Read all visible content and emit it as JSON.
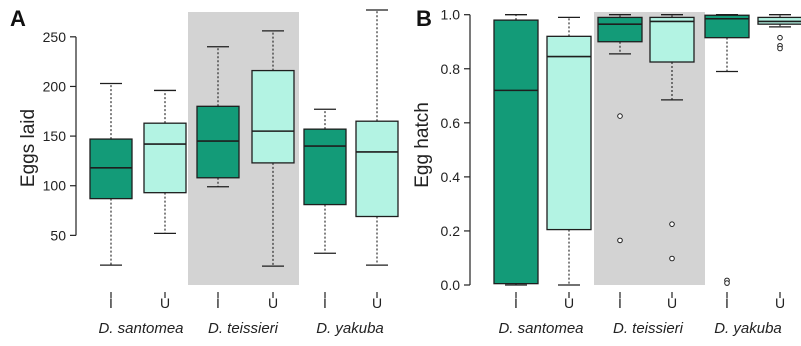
{
  "chart_data": [
    {
      "panel": "A",
      "type": "boxplot",
      "ylabel": "Eggs laid",
      "ylim": [
        0,
        275
      ],
      "yticks": [
        50,
        100,
        150,
        200,
        250
      ],
      "categories": [
        "I",
        "U",
        "I",
        "U",
        "I",
        "U"
      ],
      "groups": [
        {
          "species": "D. santomea",
          "shaded": false
        },
        {
          "species": "D. teissieri",
          "shaded": true
        },
        {
          "species": "D. yakuba",
          "shaded": false
        }
      ],
      "boxes": [
        {
          "category": "I",
          "whisker_low": 20,
          "q1": 87,
          "median": 118,
          "q3": 147,
          "whisker_high": 203,
          "outliers": []
        },
        {
          "category": "U",
          "whisker_low": 52,
          "q1": 93,
          "median": 142,
          "q3": 163,
          "whisker_high": 196,
          "outliers": []
        },
        {
          "category": "I",
          "whisker_low": 99,
          "q1": 108,
          "median": 145,
          "q3": 180,
          "whisker_high": 240,
          "outliers": []
        },
        {
          "category": "U",
          "whisker_low": 19,
          "q1": 123,
          "median": 155,
          "q3": 216,
          "whisker_high": 256,
          "outliers": []
        },
        {
          "category": "I",
          "whisker_low": 32,
          "q1": 81,
          "median": 140,
          "q3": 157,
          "whisker_high": 177,
          "outliers": []
        },
        {
          "category": "U",
          "whisker_low": 20,
          "q1": 69,
          "median": 134,
          "q3": 165,
          "whisker_high": 277,
          "outliers": []
        }
      ],
      "colors": {
        "I": "#139b78",
        "U": "#b3f3e3",
        "shade": "#d3d3d3",
        "outline": "#1e1e1e"
      }
    },
    {
      "panel": "B",
      "type": "boxplot",
      "ylabel": "Egg hatch",
      "ylim": [
        0,
        1
      ],
      "yticks": [
        "0.0",
        "0.2",
        "0.4",
        "0.6",
        "0.8",
        "1.0"
      ],
      "categories": [
        "I",
        "U",
        "I",
        "U",
        "I",
        "U"
      ],
      "groups": [
        {
          "species": "D. santomea",
          "shaded": false
        },
        {
          "species": "D. teissieri",
          "shaded": true
        },
        {
          "species": "D. yakuba",
          "shaded": false
        }
      ],
      "boxes": [
        {
          "category": "I",
          "whisker_low": 0.0,
          "q1": 0.005,
          "median": 0.72,
          "q3": 0.98,
          "whisker_high": 1.0,
          "outliers": []
        },
        {
          "category": "U",
          "whisker_low": 0.0,
          "q1": 0.205,
          "median": 0.845,
          "q3": 0.92,
          "whisker_high": 0.99,
          "outliers": []
        },
        {
          "category": "I",
          "whisker_low": 0.855,
          "q1": 0.9,
          "median": 0.965,
          "q3": 0.99,
          "whisker_high": 1.0,
          "outliers": [
            0.625,
            0.165
          ]
        },
        {
          "category": "U",
          "whisker_low": 0.685,
          "q1": 0.825,
          "median": 0.975,
          "q3": 0.99,
          "whisker_high": 1.0,
          "outliers": [
            0.225,
            0.098
          ]
        },
        {
          "category": "I",
          "whisker_low": 0.79,
          "q1": 0.915,
          "median": 0.985,
          "q3": 0.998,
          "whisker_high": 1.0,
          "outliers": [
            0.017,
            0.007
          ]
        },
        {
          "category": "U",
          "whisker_low": 0.955,
          "q1": 0.965,
          "median": 0.975,
          "q3": 0.99,
          "whisker_high": 1.0,
          "outliers": [
            0.915,
            0.885,
            0.875
          ]
        }
      ],
      "colors": {
        "I": "#139b78",
        "U": "#b3f3e3",
        "shade": "#d3d3d3",
        "outline": "#1e1e1e"
      }
    }
  ]
}
